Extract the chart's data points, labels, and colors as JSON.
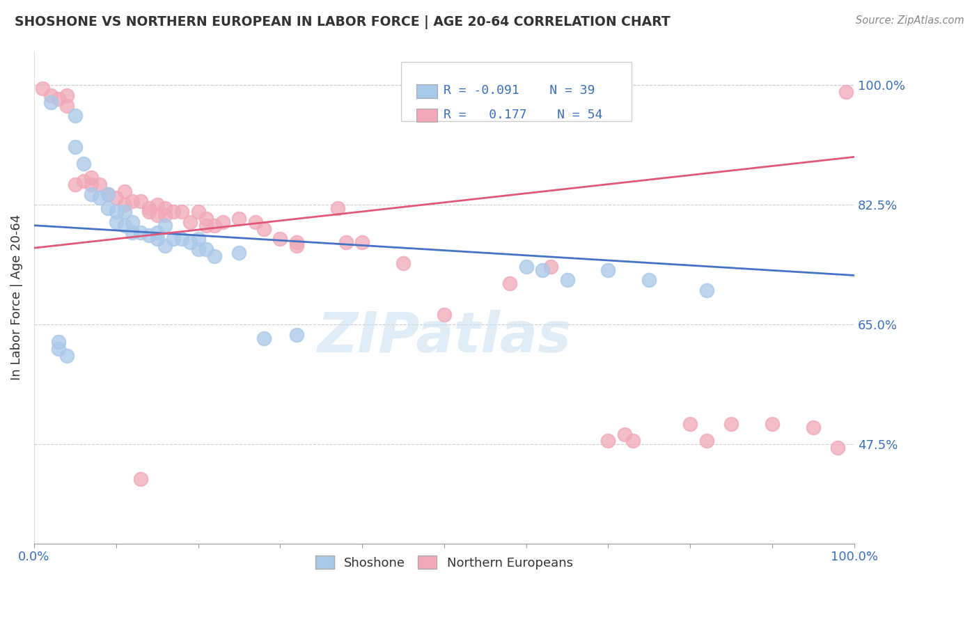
{
  "title": "SHOSHONE VS NORTHERN EUROPEAN IN LABOR FORCE | AGE 20-64 CORRELATION CHART",
  "source": "Source: ZipAtlas.com",
  "ylabel": "In Labor Force | Age 20-64",
  "xlim": [
    0.0,
    1.0
  ],
  "ylim": [
    0.33,
    1.05
  ],
  "yticks": [
    0.475,
    0.65,
    0.825,
    1.0
  ],
  "ytick_labels": [
    "47.5%",
    "65.0%",
    "82.5%",
    "100.0%"
  ],
  "xtick_labels_left": "0.0%",
  "xtick_labels_right": "100.0%",
  "legend_R_blue": "-0.091",
  "legend_N_blue": "39",
  "legend_R_pink": "0.177",
  "legend_N_pink": "54",
  "blue_color": "#a8c8e8",
  "pink_color": "#f0a8b8",
  "blue_line_color": "#4472c4",
  "pink_line_color": "#e05878",
  "watermark": "ZIPatlas",
  "blue_line_x0": 0.0,
  "blue_line_y0": 0.795,
  "blue_line_x1": 1.0,
  "blue_line_y1": 0.722,
  "pink_line_x0": 0.0,
  "pink_line_y0": 0.762,
  "pink_line_x1": 1.0,
  "pink_line_y1": 0.895,
  "blue_scatter_x": [
    0.02,
    0.05,
    0.05,
    0.06,
    0.07,
    0.08,
    0.09,
    0.09,
    0.1,
    0.1,
    0.11,
    0.11,
    0.12,
    0.12,
    0.13,
    0.14,
    0.15,
    0.15,
    0.16,
    0.16,
    0.17,
    0.18,
    0.19,
    0.2,
    0.2,
    0.21,
    0.22,
    0.25,
    0.28,
    0.32,
    0.6,
    0.62,
    0.65,
    0.7,
    0.75,
    0.82,
    0.03,
    0.03,
    0.04
  ],
  "blue_scatter_y": [
    0.975,
    0.955,
    0.91,
    0.885,
    0.84,
    0.835,
    0.84,
    0.82,
    0.815,
    0.8,
    0.815,
    0.795,
    0.8,
    0.785,
    0.785,
    0.78,
    0.785,
    0.775,
    0.795,
    0.765,
    0.775,
    0.775,
    0.77,
    0.76,
    0.775,
    0.76,
    0.75,
    0.755,
    0.63,
    0.635,
    0.735,
    0.73,
    0.715,
    0.73,
    0.715,
    0.7,
    0.625,
    0.615,
    0.605
  ],
  "pink_scatter_x": [
    0.01,
    0.02,
    0.03,
    0.04,
    0.04,
    0.05,
    0.06,
    0.07,
    0.07,
    0.08,
    0.09,
    0.1,
    0.11,
    0.11,
    0.12,
    0.13,
    0.14,
    0.14,
    0.15,
    0.15,
    0.16,
    0.16,
    0.17,
    0.18,
    0.19,
    0.2,
    0.21,
    0.21,
    0.22,
    0.23,
    0.25,
    0.27,
    0.28,
    0.3,
    0.32,
    0.32,
    0.37,
    0.38,
    0.4,
    0.45,
    0.5,
    0.58,
    0.63,
    0.7,
    0.72,
    0.73,
    0.8,
    0.82,
    0.85,
    0.9,
    0.95,
    0.98,
    0.99,
    0.13
  ],
  "pink_scatter_y": [
    0.995,
    0.985,
    0.98,
    0.985,
    0.97,
    0.855,
    0.86,
    0.865,
    0.855,
    0.855,
    0.84,
    0.835,
    0.845,
    0.825,
    0.83,
    0.83,
    0.82,
    0.815,
    0.825,
    0.81,
    0.82,
    0.81,
    0.815,
    0.815,
    0.8,
    0.815,
    0.805,
    0.795,
    0.795,
    0.8,
    0.805,
    0.8,
    0.79,
    0.775,
    0.77,
    0.765,
    0.82,
    0.77,
    0.77,
    0.74,
    0.665,
    0.71,
    0.735,
    0.48,
    0.49,
    0.48,
    0.505,
    0.48,
    0.505,
    0.505,
    0.5,
    0.47,
    0.99,
    0.425
  ]
}
